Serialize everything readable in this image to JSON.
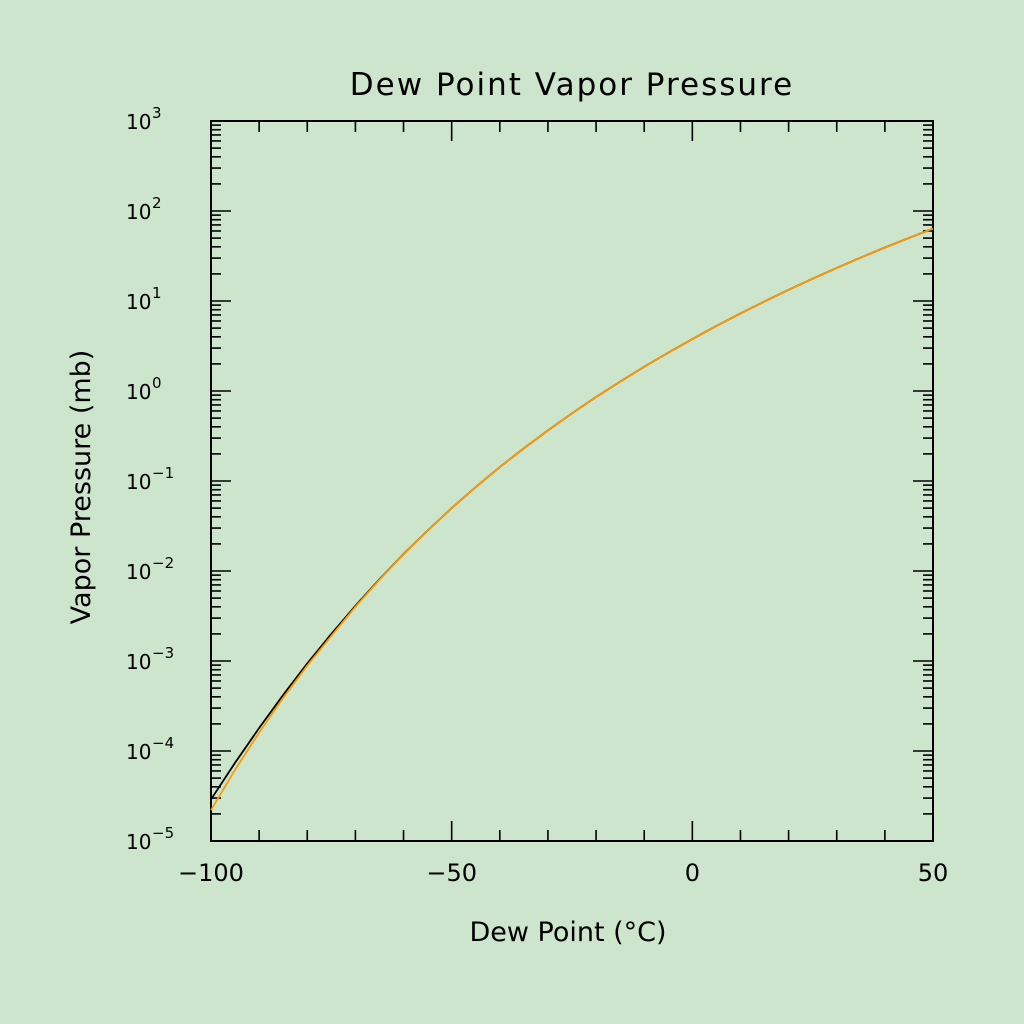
{
  "chart_data": {
    "type": "line",
    "title": "Dew Point Vapor Pressure",
    "xlabel": "Dew Point (°C)",
    "ylabel": "Vapor Pressure (mb)",
    "xlim": [
      -100,
      50
    ],
    "ylim": [
      1e-05,
      1000
    ],
    "yscale": "log",
    "grid": false,
    "x_ticks": [
      -100,
      -50,
      0,
      50
    ],
    "x_tick_labels": [
      "−100",
      "−50",
      "0",
      "50"
    ],
    "y_tick_exponents": [
      -5,
      -4,
      -3,
      -2,
      -1,
      0,
      1,
      2,
      3
    ],
    "y_tick_labels": [
      {
        "base": "10",
        "exp": "−5"
      },
      {
        "base": "10",
        "exp": "−4"
      },
      {
        "base": "10",
        "exp": "−3"
      },
      {
        "base": "10",
        "exp": "−2"
      },
      {
        "base": "10",
        "exp": "−1"
      },
      {
        "base": "10",
        "exp": "0"
      },
      {
        "base": "10",
        "exp": "1"
      },
      {
        "base": "10",
        "exp": "2"
      },
      {
        "base": "10",
        "exp": "3"
      }
    ],
    "series": [
      {
        "color": "#000000",
        "x": [
          -100,
          -95,
          -90,
          -85,
          -80,
          -75,
          -70,
          -65,
          -60,
          -55,
          -50,
          -45,
          -40,
          -35,
          -30,
          -25,
          -20,
          -15,
          -10,
          -5,
          0,
          5,
          10,
          15,
          20,
          25,
          30,
          35,
          40,
          45,
          50
        ],
        "y": [
          2.9e-05,
          7.4e-05,
          0.00018,
          0.00042,
          0.00094,
          0.002,
          0.0041,
          0.0081,
          0.0154,
          0.0281,
          0.05,
          0.0857,
          0.143,
          0.231,
          0.365,
          0.565,
          0.857,
          1.27,
          1.86,
          2.67,
          3.78,
          5.28,
          7.27,
          9.89,
          13.3,
          17.7,
          23.3,
          30.4,
          39.3,
          50.2,
          63.7
        ]
      },
      {
        "color": "#ff9a00",
        "x": [
          -100,
          -95,
          -90,
          -85,
          -80,
          -75,
          -70,
          -65,
          -60,
          -55,
          -50,
          -45,
          -40,
          -35,
          -30,
          -25,
          -20,
          -15,
          -10,
          -5,
          0,
          5,
          10,
          15,
          20,
          25,
          30,
          35,
          40,
          45,
          50
        ],
        "y": [
          2.2e-05,
          6.2e-05,
          0.00016,
          0.00039,
          0.00089,
          0.0019,
          0.004,
          0.008,
          0.0153,
          0.028,
          0.05,
          0.0857,
          0.143,
          0.231,
          0.365,
          0.565,
          0.857,
          1.27,
          1.86,
          2.67,
          3.78,
          5.28,
          7.27,
          9.89,
          13.3,
          17.7,
          23.3,
          30.4,
          39.3,
          50.2,
          63.7
        ]
      }
    ]
  }
}
